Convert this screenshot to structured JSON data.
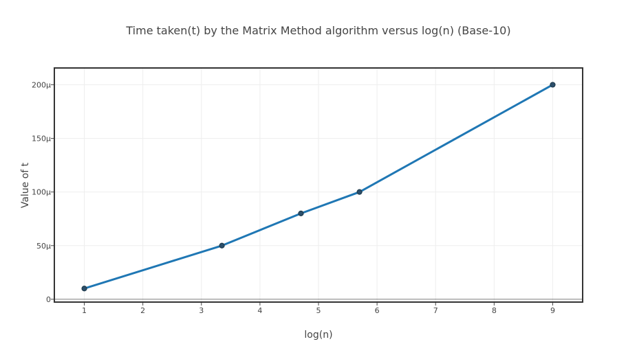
{
  "chart_data": {
    "type": "line",
    "title": "Time taken(t) by the Matrix Method algorithm versus log(n) (Base-10)",
    "xlabel": "log(n)",
    "ylabel": "Value of t",
    "xlim": [
      0.5,
      9.5
    ],
    "ylim": [
      -2,
      215
    ],
    "x_ticks": [
      1,
      2,
      3,
      4,
      5,
      6,
      7,
      8,
      9
    ],
    "x_tick_labels": [
      "1",
      "2",
      "3",
      "4",
      "5",
      "6",
      "7",
      "8",
      "9"
    ],
    "y_ticks": [
      0,
      50,
      100,
      150,
      200
    ],
    "y_tick_labels": [
      "0",
      "50μ",
      "100μ",
      "150μ",
      "200μ"
    ],
    "grid": true,
    "series": [
      {
        "name": "t",
        "x": [
          1,
          3.35,
          4.7,
          5.7,
          9
        ],
        "y": [
          10,
          50,
          80,
          100,
          200
        ],
        "color": "#1f77b4",
        "marker_color": "#2c4f6b"
      }
    ]
  }
}
